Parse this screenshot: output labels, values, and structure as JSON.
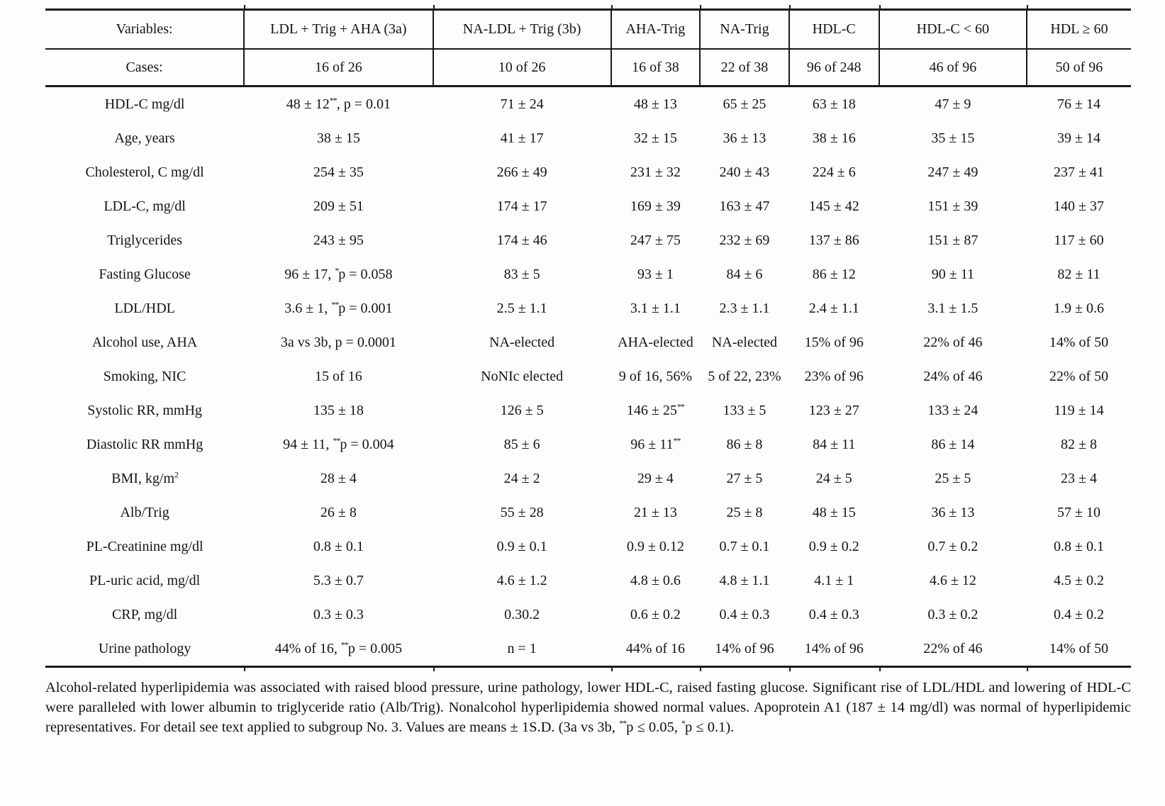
{
  "table": {
    "columns": [
      "Variables:",
      "LDL + Trig + AHA (3a)",
      "NA-LDL + Trig (3b)",
      "AHA-Trig",
      "NA-Trig",
      "HDL-C",
      "HDL-C < 60",
      "HDL ≥ 60"
    ],
    "cases": {
      "label": "Cases:",
      "values": [
        "16 of 26",
        "10 of 26",
        "16 of 38",
        "22 of 38",
        "96 of 248",
        "46 of 96",
        "50 of 96"
      ]
    },
    "rows": [
      {
        "label": "HDL-C mg/dl",
        "values": [
          "48 ± 12^{**}, p = 0.01",
          "71 ± 24",
          "48 ± 13",
          "65 ± 25",
          "63 ± 18",
          "47 ± 9",
          "76 ± 14"
        ]
      },
      {
        "label": "Age, years",
        "values": [
          "38 ± 15",
          "41 ± 17",
          "32 ± 15",
          "36 ± 13",
          "38 ± 16",
          "35 ± 15",
          "39 ± 14"
        ]
      },
      {
        "label": "Cholesterol, C mg/dl",
        "values": [
          "254 ± 35",
          "266 ± 49",
          "231 ± 32",
          "240 ± 43",
          "224 ± 6",
          "247 ± 49",
          "237 ± 41"
        ]
      },
      {
        "label": "LDL-C, mg/dl",
        "values": [
          "209 ± 51",
          "174 ± 17",
          "169 ± 39",
          "163 ± 47",
          "145 ± 42",
          "151 ± 39",
          "140 ± 37"
        ]
      },
      {
        "label": "Triglycerides",
        "values": [
          "243 ± 95",
          "174 ± 46",
          "247 ± 75",
          "232 ± 69",
          "137 ± 86",
          "151 ± 87",
          "117 ± 60"
        ]
      },
      {
        "label": "Fasting Glucose",
        "values": [
          "96 ± 17, ^{*}p = 0.058",
          "83 ± 5",
          "93 ± 1",
          "84 ± 6",
          "86 ± 12",
          "90 ± 11",
          "82 ± 11"
        ]
      },
      {
        "label": "LDL/HDL",
        "values": [
          "3.6 ± 1, ^{**}p = 0.001",
          "2.5 ± 1.1",
          "3.1 ± 1.1",
          "2.3 ± 1.1",
          "2.4 ± 1.1",
          "3.1 ± 1.5",
          "1.9 ± 0.6"
        ]
      },
      {
        "label": "Alcohol use, AHA",
        "values": [
          "3a vs 3b, p = 0.0001",
          "NA-elected",
          "AHA-elected",
          "NA-elected",
          "15% of 96",
          "22% of 46",
          "14% of 50"
        ]
      },
      {
        "label": "Smoking, NIC",
        "values": [
          "15 of 16",
          "NoNIc elected",
          "9 of 16, 56%",
          "5 of 22, 23%",
          "23% of 96",
          "24% of 46",
          "22% of 50"
        ]
      },
      {
        "label": "Systolic RR, mmHg",
        "values": [
          "135 ± 18",
          "126 ± 5",
          "146 ± 25^{**}",
          "133 ± 5",
          "123 ± 27",
          "133 ± 24",
          "119 ± 14"
        ]
      },
      {
        "label": "Diastolic RR mmHg",
        "values": [
          "94 ± 11, ^{**}p = 0.004",
          "85 ± 6",
          "96 ± 11^{**}",
          "86 ± 8",
          "84 ± 11",
          "86 ± 14",
          "82 ± 8"
        ]
      },
      {
        "label": "BMI, kg/m^{2}",
        "values": [
          "28 ± 4",
          "24 ± 2",
          "29 ± 4",
          "27 ± 5",
          "24 ± 5",
          "25 ± 5",
          "23 ± 4"
        ]
      },
      {
        "label": "Alb/Trig",
        "values": [
          "26 ± 8",
          "55 ± 28",
          "21 ± 13",
          "25 ± 8",
          "48 ± 15",
          "36 ± 13",
          "57 ± 10"
        ]
      },
      {
        "label": "PL-Creatinine mg/dl",
        "values": [
          "0.8 ± 0.1",
          "0.9 ± 0.1",
          "0.9 ± 0.12",
          "0.7 ± 0.1",
          "0.9 ± 0.2",
          "0.7 ± 0.2",
          "0.8 ± 0.1"
        ]
      },
      {
        "label": "PL-uric acid, mg/dl",
        "values": [
          "5.3 ± 0.7",
          "4.6 ± 1.2",
          "4.8 ± 0.6",
          "4.8 ± 1.1",
          "4.1 ± 1",
          "4.6 ± 12",
          "4.5 ± 0.2"
        ]
      },
      {
        "label": "CRP, mg/dl",
        "values": [
          "0.3 ± 0.3",
          "0.30.2",
          "0.6 ± 0.2",
          "0.4 ± 0.3",
          "0.4 ± 0.3",
          "0.3 ± 0.2",
          "0.4 ± 0.2"
        ]
      },
      {
        "label": "Urine pathology",
        "values": [
          "44% of 16, ^{**}p = 0.005",
          "n = 1",
          "44% of 16",
          "14% of 96",
          "14% of 96",
          "22% of 46",
          "14% of 50"
        ]
      }
    ]
  },
  "footnote": "Alcohol-related hyperlipidemia was associated with raised blood pressure, urine pathology, lower HDL-C, raised fasting glucose. Significant rise of LDL/HDL and lowering of HDL-C were paralleled with lower albumin to triglyceride ratio (Alb/Trig). Nonalcohol hyperlipidemia showed normal values. Apoprotein A1 (187 ± 14 mg/dl) was normal of hyperlipidemic representatives. For detail see text applied to subgroup No. 3. Values are means ± 1S.D. (3a vs 3b, ^{**}p ≤ 0.05, ^{*}p ≤ 0.1)."
}
